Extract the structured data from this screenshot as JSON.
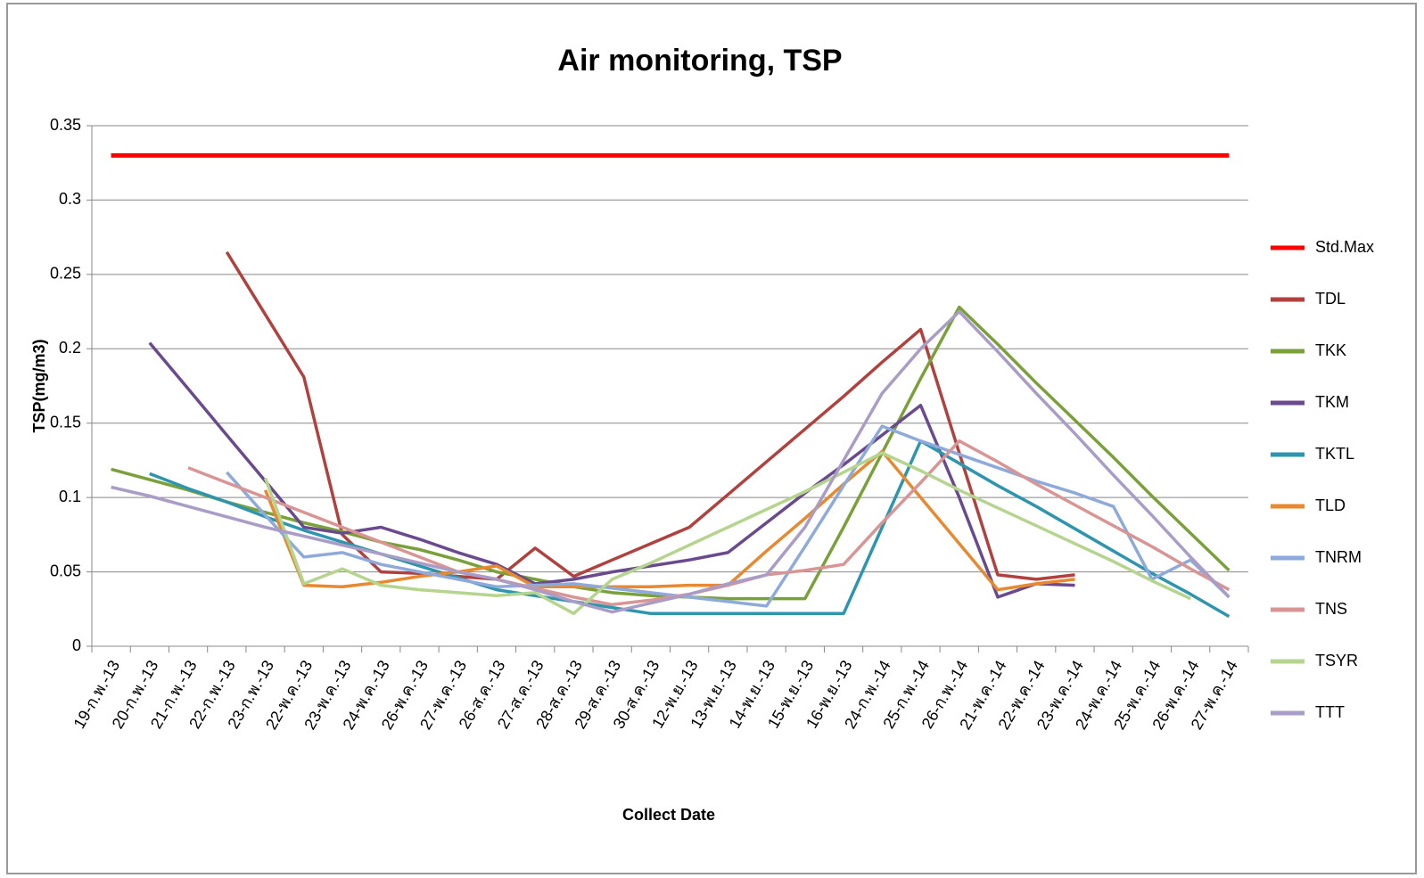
{
  "chart_data": {
    "type": "line",
    "title": "Air monitoring, TSP",
    "x_label": "Collect Date",
    "y_label": "TSP(mg/m3)",
    "categories": [
      "19-ก.พ.-13",
      "20-ก.พ.-13",
      "21-ก.พ.-13",
      "22-ก.พ.-13",
      "23-ก.พ.-13",
      "22-พ.ค.-13",
      "23-พ.ค.-13",
      "24-พ.ค.-13",
      "26-พ.ค.-13",
      "27-พ.ค.-13",
      "26-ส.ค.-13",
      "27-ส.ค.-13",
      "28-ส.ค.-13",
      "29-ส.ค.-13",
      "30-ส.ค.-13",
      "12-พ.ย.-13",
      "13-พ.ย.-13",
      "14-พ.ย.-13",
      "15-พ.ย.-13",
      "16-พ.ย.-13",
      "24-ก.พ.-14",
      "25-ก.พ.-14",
      "26-ก.พ.-14",
      "21-พ.ค.-14",
      "22-พ.ค.-14",
      "23-พ.ค.-14",
      "24-พ.ค.-14",
      "25-พ.ค.-14",
      "26-พ.ค.-14",
      "27-พ.ค.-14"
    ],
    "ylim": [
      0,
      0.35
    ],
    "yticks": [
      0,
      0.05,
      0.1,
      0.15,
      0.2,
      0.25,
      0.3,
      0.35
    ],
    "grid": true,
    "legend": "right",
    "series": [
      {
        "name": "Std.Max",
        "color": "#ff0000",
        "values": [
          0.33,
          0.33,
          0.33,
          0.33,
          0.33,
          0.33,
          0.33,
          0.33,
          0.33,
          0.33,
          0.33,
          0.33,
          0.33,
          0.33,
          0.33,
          0.33,
          0.33,
          0.33,
          0.33,
          0.33,
          0.33,
          0.33,
          0.33,
          0.33,
          0.33,
          0.33,
          0.33,
          0.33,
          0.33,
          0.33
        ]
      },
      {
        "name": "TDL",
        "color": "#b0413e",
        "values": [
          null,
          null,
          null,
          0.265,
          0.223,
          0.181,
          0.075,
          0.05,
          0.049,
          0.047,
          0.045,
          0.066,
          0.047,
          0.058,
          0.069,
          0.08,
          0.102,
          0.124,
          0.146,
          0.168,
          0.191,
          0.213,
          0.13,
          0.048,
          0.045,
          0.048,
          null,
          null,
          null,
          null
        ]
      },
      {
        "name": "TKK",
        "color": "#7aa03a",
        "values": [
          0.119,
          0.112,
          0.105,
          0.097,
          0.09,
          0.083,
          0.077,
          0.07,
          0.065,
          0.058,
          0.05,
          0.045,
          0.04,
          0.036,
          0.034,
          0.033,
          0.032,
          0.032,
          0.032,
          0.08,
          0.13,
          0.18,
          0.228,
          0.203,
          0.177,
          0.152,
          0.127,
          0.101,
          0.076,
          0.051
        ]
      },
      {
        "name": "TKM",
        "color": "#6a4a8e",
        "values": [
          null,
          0.204,
          0.173,
          0.142,
          0.111,
          0.08,
          0.076,
          0.08,
          0.072,
          0.063,
          0.055,
          0.042,
          0.045,
          0.05,
          0.054,
          0.058,
          0.063,
          0.083,
          0.103,
          0.122,
          0.142,
          0.162,
          0.1,
          0.033,
          0.042,
          0.041,
          null,
          null,
          null,
          null
        ]
      },
      {
        "name": "TKTL",
        "color": "#2e95ae",
        "values": [
          null,
          0.116,
          0.106,
          0.097,
          0.087,
          0.078,
          0.07,
          0.062,
          0.054,
          0.046,
          0.038,
          0.034,
          0.03,
          0.026,
          0.022,
          0.022,
          0.022,
          0.022,
          0.022,
          0.022,
          0.08,
          0.138,
          0.123,
          0.108,
          0.094,
          0.079,
          0.064,
          0.049,
          0.035,
          0.02
        ]
      },
      {
        "name": "TLD",
        "color": "#e8892f",
        "values": [
          null,
          null,
          null,
          null,
          0.105,
          0.041,
          0.04,
          0.043,
          0.047,
          0.05,
          0.054,
          0.04,
          0.04,
          0.04,
          0.04,
          0.041,
          0.041,
          0.064,
          0.086,
          0.109,
          0.131,
          0.1,
          0.069,
          0.038,
          0.042,
          0.045,
          null,
          null,
          null,
          null
        ]
      },
      {
        "name": "TNRM",
        "color": "#8eaadb",
        "values": [
          null,
          null,
          null,
          0.117,
          0.088,
          0.06,
          0.063,
          0.055,
          0.05,
          0.045,
          0.04,
          0.041,
          0.042,
          0.039,
          0.036,
          0.033,
          0.03,
          0.027,
          0.067,
          0.108,
          0.148,
          0.138,
          0.129,
          0.12,
          0.111,
          0.103,
          0.094,
          0.045,
          0.058,
          0.033
        ]
      },
      {
        "name": "TNS",
        "color": "#d99594",
        "values": [
          null,
          null,
          0.12,
          0.11,
          0.1,
          0.09,
          0.08,
          0.07,
          0.06,
          0.05,
          0.045,
          0.039,
          0.033,
          0.028,
          0.031,
          0.035,
          0.041,
          0.048,
          0.051,
          0.055,
          0.083,
          0.11,
          0.138,
          0.124,
          0.109,
          0.095,
          0.081,
          0.067,
          0.052,
          0.038
        ]
      },
      {
        "name": "TSYR",
        "color": "#b5d48e",
        "values": [
          null,
          null,
          null,
          null,
          0.113,
          0.042,
          0.052,
          0.041,
          0.038,
          0.036,
          0.034,
          0.036,
          0.022,
          0.045,
          0.056,
          0.068,
          0.08,
          0.092,
          0.104,
          0.117,
          0.13,
          0.118,
          0.105,
          0.093,
          0.081,
          0.069,
          0.057,
          0.044,
          0.032,
          null
        ]
      },
      {
        "name": "TTT",
        "color": "#a99cc6",
        "values": [
          0.107,
          0.101,
          0.094,
          0.087,
          0.08,
          0.074,
          0.068,
          0.062,
          0.056,
          0.05,
          0.045,
          0.038,
          0.03,
          0.023,
          0.029,
          0.035,
          0.042,
          0.048,
          0.08,
          0.125,
          0.17,
          0.2,
          0.225,
          0.198,
          0.17,
          0.143,
          0.115,
          0.088,
          0.06,
          0.033
        ]
      }
    ]
  }
}
